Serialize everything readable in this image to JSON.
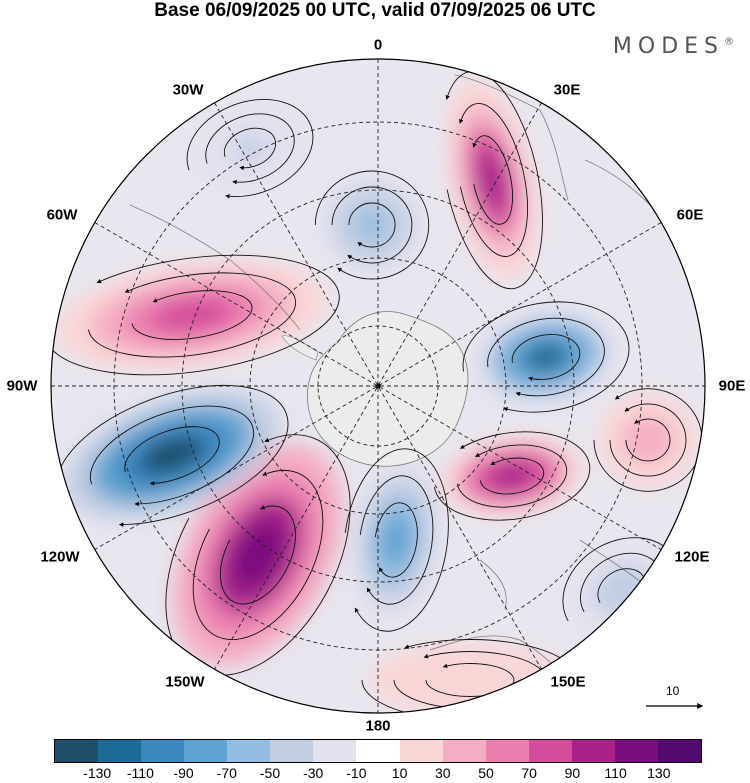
{
  "title": "Base 06/09/2025 00 UTC, valid 07/09/2025 06 UTC",
  "brand": "MODES",
  "brand_mark": "®",
  "longitude_labels": {
    "lon_0": "0",
    "lon_30e": "30E",
    "lon_60e": "60E",
    "lon_90e": "90E",
    "lon_120e": "120E",
    "lon_150e": "150E",
    "lon_180": "180",
    "lon_150w": "150W",
    "lon_120w": "120W",
    "lon_90w": "90W",
    "lon_60w": "60W",
    "lon_30w": "30W"
  },
  "reference_vector": {
    "label": "10"
  },
  "colorbar": {
    "colors": [
      "#1f4e6b",
      "#1d6a98",
      "#3a86bf",
      "#5ea3d1",
      "#92bce0",
      "#c1cde2",
      "#e2e1ee",
      "#ffffff",
      "#f9d6d6",
      "#f4aec3",
      "#eb7fb0",
      "#d44c9c",
      "#a8228a",
      "#7a0e7e",
      "#520a6e"
    ],
    "ticks": [
      "-130",
      "-110",
      "-90",
      "-70",
      "-50",
      "-30",
      "-10",
      "10",
      "30",
      "50",
      "70",
      "90",
      "110",
      "130"
    ]
  },
  "anomalies": [
    {
      "name": "cell-se-atlantic-high",
      "value": 95
    },
    {
      "name": "cell-south-atlantic-low",
      "value": -60
    },
    {
      "name": "cell-wedell-low",
      "value": -30
    },
    {
      "name": "cell-indian-low",
      "value": -110
    },
    {
      "name": "cell-southern-indian-high",
      "value": 110
    },
    {
      "name": "cell-ross-low",
      "value": -80
    },
    {
      "name": "cell-pacific-high",
      "value": 130
    },
    {
      "name": "cell-amundsen-low",
      "value": -140
    },
    {
      "name": "cell-patagonia-high",
      "value": 75
    },
    {
      "name": "cell-tasman-high",
      "value": 45
    },
    {
      "name": "cell-aus-low",
      "value": -40
    },
    {
      "name": "cell-west-pacific-high",
      "value": 25
    }
  ]
}
